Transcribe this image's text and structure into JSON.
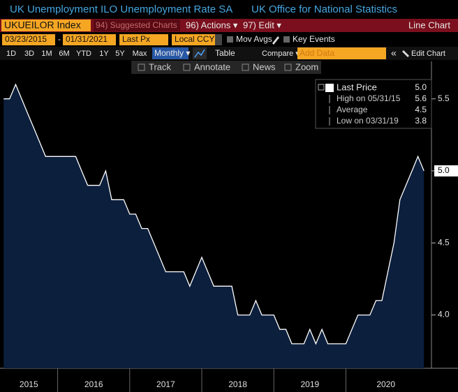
{
  "header": {
    "title": "UK Unemployment ILO Unemployment Rate SA",
    "source": "UK Office for National Statistics"
  },
  "menu": {
    "ticker": "UKUEILOR Index",
    "suggested": "94) Suggested Charts",
    "actions": "96) Actions ▾",
    "edit": "97) Edit ▾",
    "chart_type": "Line Chart"
  },
  "controls": {
    "start": "03/23/2015",
    "dash": "-",
    "end": "01/31/2021",
    "field": "Last Px",
    "currency": "Local CCY",
    "mov_avgs": "Mov Avgs",
    "key_events": "Key Events"
  },
  "periods": [
    "1D",
    "3D",
    "1M",
    "6M",
    "YTD",
    "1Y",
    "5Y",
    "Max"
  ],
  "period_tools": {
    "frequency": "Monthly ▾",
    "table": "Table",
    "compare": "Compare ▾",
    "add_data": "Add Data",
    "edit_chart": "Edit Chart"
  },
  "tools": [
    "Track",
    "Annotate",
    "News",
    "Zoom"
  ],
  "chart_data": {
    "type": "area",
    "x": [
      2015.25,
      2015.333,
      2015.417,
      2015.5,
      2015.583,
      2015.667,
      2015.75,
      2015.833,
      2015.917,
      2016.0,
      2016.083,
      2016.167,
      2016.25,
      2016.333,
      2016.417,
      2016.5,
      2016.583,
      2016.667,
      2016.75,
      2016.833,
      2016.917,
      2017.0,
      2017.083,
      2017.167,
      2017.25,
      2017.333,
      2017.417,
      2017.5,
      2017.583,
      2017.667,
      2017.75,
      2017.833,
      2017.917,
      2018.0,
      2018.083,
      2018.167,
      2018.25,
      2018.333,
      2018.417,
      2018.5,
      2018.583,
      2018.667,
      2018.75,
      2018.833,
      2018.917,
      2019.0,
      2019.083,
      2019.167,
      2019.25,
      2019.333,
      2019.417,
      2019.5,
      2019.583,
      2019.667,
      2019.75,
      2019.833,
      2019.917,
      2020.0,
      2020.083,
      2020.167,
      2020.25,
      2020.333,
      2020.417,
      2020.5,
      2020.583,
      2020.667,
      2020.75,
      2020.833,
      2020.917,
      2021.0,
      2021.083
    ],
    "series": [
      {
        "name": "Last Price",
        "color": "#ffffff",
        "fill": "#0c1f3d",
        "values": [
          5.5,
          5.5,
          5.6,
          5.5,
          5.4,
          5.3,
          5.2,
          5.1,
          5.1,
          5.1,
          5.1,
          5.1,
          5.1,
          5.0,
          4.9,
          4.9,
          4.9,
          5.0,
          4.8,
          4.8,
          4.8,
          4.7,
          4.7,
          4.6,
          4.6,
          4.5,
          4.4,
          4.3,
          4.3,
          4.3,
          4.3,
          4.2,
          4.3,
          4.4,
          4.3,
          4.2,
          4.2,
          4.2,
          4.2,
          4.0,
          4.0,
          4.0,
          4.1,
          4.0,
          4.0,
          4.0,
          3.9,
          3.9,
          3.8,
          3.8,
          3.8,
          3.9,
          3.8,
          3.9,
          3.8,
          3.8,
          3.8,
          3.8,
          3.9,
          4.0,
          4.0,
          4.0,
          4.1,
          4.1,
          4.3,
          4.5,
          4.8,
          4.9,
          5.0,
          5.1,
          5.0
        ]
      }
    ],
    "xlim": [
      2015.2,
      2021.11
    ],
    "xticks": [
      2015,
      2016,
      2017,
      2018,
      2019,
      2020
    ],
    "ylim": [
      3.63,
      5.76
    ],
    "yticks": [
      {
        "value": 4,
        "label": "4.0"
      },
      {
        "value": 4.5,
        "label": "4.5"
      },
      {
        "value": 5,
        "label": "5.0"
      },
      {
        "value": 5.5,
        "label": "5.5"
      }
    ],
    "grid": false,
    "stats": [
      {
        "label": "Last Price",
        "value": "5.0"
      },
      {
        "label": "High on 05/31/15",
        "value": "5.6"
      },
      {
        "label": "Average",
        "value": "4.5"
      },
      {
        "label": "Low on 03/31/19",
        "value": "3.8"
      }
    ]
  }
}
